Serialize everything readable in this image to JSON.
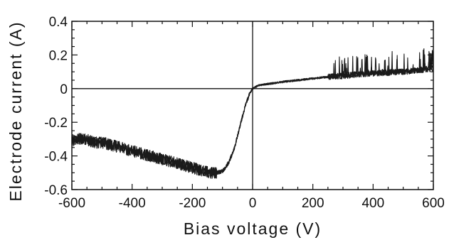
{
  "chart_data": {
    "type": "line",
    "title": "",
    "xlabel": "Bias voltage (V)",
    "ylabel": "Electrode current (A)",
    "xlim": [
      -600,
      600
    ],
    "ylim": [
      -0.6,
      0.4
    ],
    "x_ticks": [
      "-600",
      "-400",
      "-200",
      "0",
      "200",
      "400",
      "600"
    ],
    "y_ticks": [
      "0.4",
      "0.2",
      "0",
      "-0.2",
      "-0.4",
      "-0.6"
    ],
    "grid": false,
    "zero_lines": true,
    "series": [
      {
        "color": "#1a1a1a",
        "x": [
          -600,
          -580,
          -560,
          -540,
          -520,
          -500,
          -480,
          -460,
          -440,
          -420,
          -400,
          -380,
          -360,
          -340,
          -320,
          -300,
          -280,
          -260,
          -240,
          -220,
          -200,
          -180,
          -160,
          -140,
          -120,
          -100,
          -90,
          -80,
          -70,
          -60,
          -50,
          -40,
          -30,
          -20,
          -10,
          0,
          10,
          20,
          40,
          60,
          80,
          100,
          150,
          200,
          250,
          300,
          350,
          400,
          450,
          500,
          550,
          600
        ],
        "y": [
          -0.31,
          -0.3,
          -0.3,
          -0.31,
          -0.32,
          -0.32,
          -0.33,
          -0.34,
          -0.35,
          -0.36,
          -0.37,
          -0.38,
          -0.39,
          -0.4,
          -0.41,
          -0.42,
          -0.43,
          -0.44,
          -0.45,
          -0.46,
          -0.47,
          -0.48,
          -0.49,
          -0.5,
          -0.5,
          -0.49,
          -0.47,
          -0.44,
          -0.4,
          -0.35,
          -0.28,
          -0.21,
          -0.14,
          -0.08,
          -0.03,
          0.0,
          0.01,
          0.02,
          0.025,
          0.03,
          0.035,
          0.04,
          0.05,
          0.06,
          0.07,
          0.075,
          0.085,
          0.09,
          0.095,
          0.1,
          0.11,
          0.12
        ]
      }
    ]
  }
}
